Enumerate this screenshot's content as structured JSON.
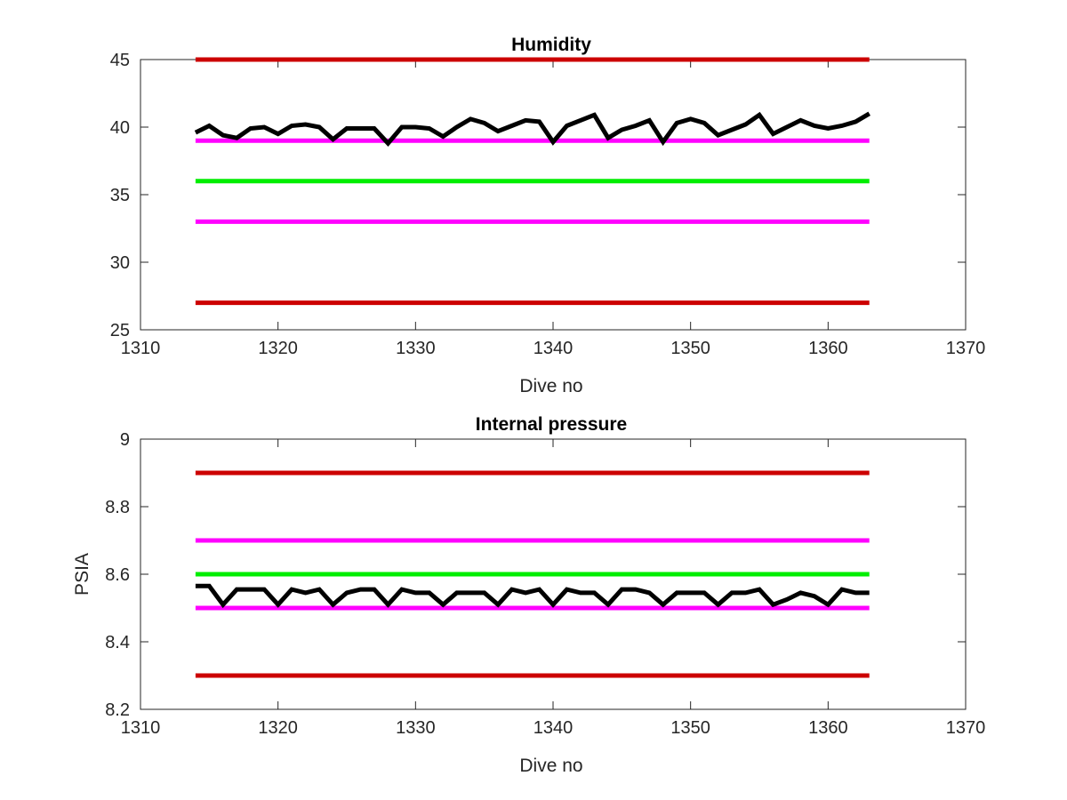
{
  "chart_data": [
    {
      "type": "line",
      "title": "Humidity",
      "xlabel": "Dive no",
      "ylabel": "",
      "xlim": [
        1310,
        1370
      ],
      "ylim": [
        25,
        45
      ],
      "xticks": [
        "1310",
        "1320",
        "1330",
        "1340",
        "1350",
        "1360",
        "1370"
      ],
      "yticks": [
        "25",
        "30",
        "35",
        "40",
        "45"
      ],
      "grid": false,
      "series": [
        {
          "color": "#000000",
          "x": [
            1314,
            1315,
            1316,
            1317,
            1318,
            1319,
            1320,
            1321,
            1322,
            1323,
            1324,
            1325,
            1326,
            1327,
            1328,
            1329,
            1330,
            1331,
            1332,
            1333,
            1334,
            1335,
            1336,
            1337,
            1338,
            1339,
            1340,
            1341,
            1342,
            1343,
            1344,
            1345,
            1346,
            1347,
            1348,
            1349,
            1350,
            1351,
            1352,
            1353,
            1354,
            1355,
            1356,
            1357,
            1358,
            1359,
            1360,
            1361,
            1362,
            1363
          ],
          "y": [
            39.6,
            40.1,
            39.4,
            39.2,
            39.9,
            40.0,
            39.5,
            40.1,
            40.2,
            40.0,
            39.1,
            39.9,
            39.9,
            39.9,
            38.8,
            40.0,
            40.0,
            39.9,
            39.3,
            40.0,
            40.6,
            40.3,
            39.7,
            40.1,
            40.5,
            40.4,
            38.9,
            40.1,
            40.5,
            40.9,
            39.2,
            39.8,
            40.1,
            40.5,
            38.9,
            40.3,
            40.6,
            40.3,
            39.4,
            39.8,
            40.2,
            40.9,
            39.5,
            40.0,
            40.5,
            40.1,
            39.9,
            40.1,
            40.4,
            41.0
          ]
        },
        {
          "color": "#cc0000",
          "x": [
            1314,
            1363
          ],
          "y": [
            45,
            45
          ]
        },
        {
          "color": "#ff00ff",
          "x": [
            1314,
            1363
          ],
          "y": [
            39,
            39
          ]
        },
        {
          "color": "#00ee00",
          "x": [
            1314,
            1363
          ],
          "y": [
            36,
            36
          ]
        },
        {
          "color": "#ff00ff",
          "x": [
            1314,
            1363
          ],
          "y": [
            33,
            33
          ]
        },
        {
          "color": "#cc0000",
          "x": [
            1314,
            1363
          ],
          "y": [
            27,
            27
          ]
        }
      ]
    },
    {
      "type": "line",
      "title": "Internal pressure",
      "xlabel": "Dive no",
      "ylabel": "PSIA",
      "xlim": [
        1310,
        1370
      ],
      "ylim": [
        8.2,
        9
      ],
      "xticks": [
        "1310",
        "1320",
        "1330",
        "1340",
        "1350",
        "1360",
        "1370"
      ],
      "yticks": [
        "8.2",
        "8.4",
        "8.6",
        "8.8",
        "9"
      ],
      "grid": false,
      "series": [
        {
          "color": "#000000",
          "x": [
            1314,
            1315,
            1316,
            1317,
            1318,
            1319,
            1320,
            1321,
            1322,
            1323,
            1324,
            1325,
            1326,
            1327,
            1328,
            1329,
            1330,
            1331,
            1332,
            1333,
            1334,
            1335,
            1336,
            1337,
            1338,
            1339,
            1340,
            1341,
            1342,
            1343,
            1344,
            1345,
            1346,
            1347,
            1348,
            1349,
            1350,
            1351,
            1352,
            1353,
            1354,
            1355,
            1356,
            1357,
            1358,
            1359,
            1360,
            1361,
            1362,
            1363
          ],
          "y": [
            8.565,
            8.565,
            8.51,
            8.555,
            8.555,
            8.555,
            8.51,
            8.555,
            8.545,
            8.555,
            8.51,
            8.545,
            8.555,
            8.555,
            8.51,
            8.555,
            8.545,
            8.545,
            8.51,
            8.545,
            8.545,
            8.545,
            8.51,
            8.555,
            8.545,
            8.555,
            8.51,
            8.555,
            8.545,
            8.545,
            8.51,
            8.555,
            8.555,
            8.545,
            8.51,
            8.545,
            8.545,
            8.545,
            8.51,
            8.545,
            8.545,
            8.555,
            8.51,
            8.525,
            8.545,
            8.535,
            8.51,
            8.555,
            8.545,
            8.545
          ]
        },
        {
          "color": "#cc0000",
          "x": [
            1314,
            1363
          ],
          "y": [
            8.9,
            8.9
          ]
        },
        {
          "color": "#ff00ff",
          "x": [
            1314,
            1363
          ],
          "y": [
            8.7,
            8.7
          ]
        },
        {
          "color": "#00ee00",
          "x": [
            1314,
            1363
          ],
          "y": [
            8.6,
            8.6
          ]
        },
        {
          "color": "#ff00ff",
          "x": [
            1314,
            1363
          ],
          "y": [
            8.5,
            8.5
          ]
        },
        {
          "color": "#cc0000",
          "x": [
            1314,
            1363
          ],
          "y": [
            8.3,
            8.3
          ]
        }
      ]
    }
  ]
}
